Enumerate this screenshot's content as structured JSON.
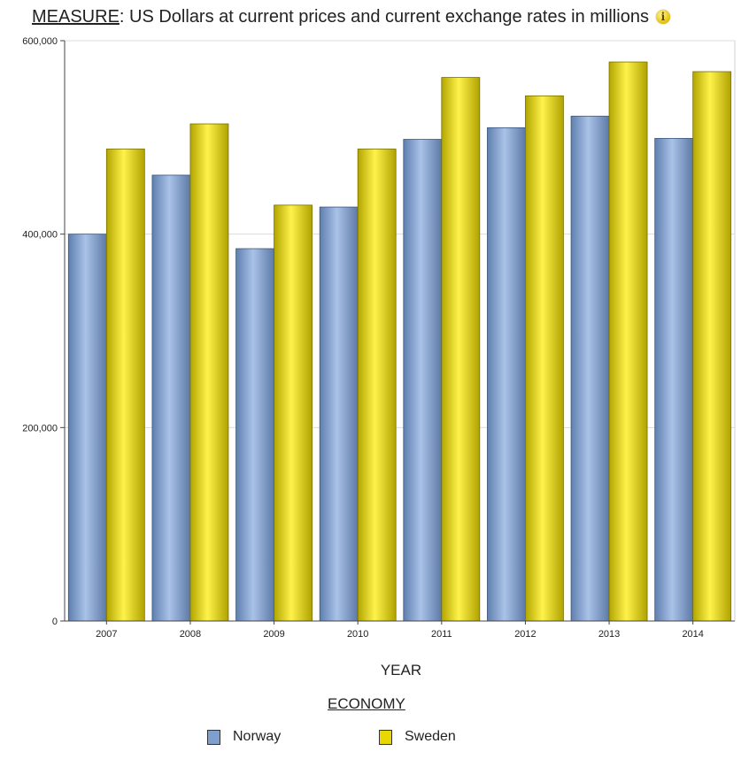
{
  "header": {
    "measure_label": "MEASURE",
    "measure_value": ": US Dollars at current prices and current exchange rates in millions",
    "info_icon": "info-icon"
  },
  "chart_data": {
    "type": "bar",
    "categories": [
      "2007",
      "2008",
      "2009",
      "2010",
      "2011",
      "2012",
      "2013",
      "2014"
    ],
    "series": [
      {
        "name": "Norway",
        "color": "#7f9fcf",
        "values": [
          400000,
          461000,
          385000,
          428000,
          498000,
          510000,
          522000,
          499000
        ]
      },
      {
        "name": "Sweden",
        "color": "#e6d800",
        "values": [
          488000,
          514000,
          430000,
          488000,
          562000,
          543000,
          578000,
          568000
        ]
      }
    ],
    "xlabel": "YEAR",
    "ylabel": "",
    "ylim": [
      0,
      600000
    ],
    "yticks": [
      0,
      200000,
      400000,
      600000
    ],
    "ytick_labels": [
      "0",
      "200,000",
      "400,000",
      "600,000"
    ],
    "grid": true,
    "legend_position": "bottom"
  },
  "legend": {
    "title": "ECONOMY",
    "items": [
      {
        "label": "Norway",
        "color": "#7f9fcf"
      },
      {
        "label": "Sweden",
        "color": "#e6d800"
      }
    ]
  }
}
